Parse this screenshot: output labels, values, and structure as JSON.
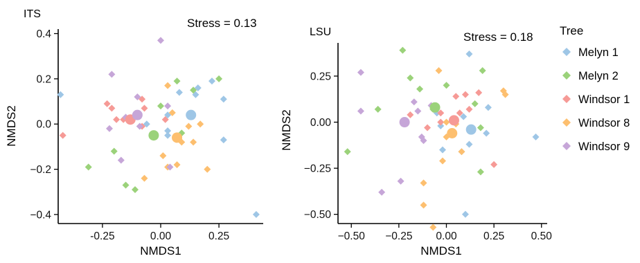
{
  "colors": {
    "Melyn 1": "#9ec6e6",
    "Melyn 2": "#9bd27a",
    "Windsor 1": "#f69a96",
    "Windsor 8": "#fdbf6f",
    "Windsor 9": "#c6a6d8"
  },
  "legend": {
    "title": "Tree",
    "items": [
      "Melyn 1",
      "Melyn 2",
      "Windsor 1",
      "Windsor 8",
      "Windsor 9"
    ],
    "position": "right"
  },
  "chart_data": [
    {
      "type": "scatter",
      "panel_label": "ITS",
      "stress": "Stress = 0.13",
      "xlabel": "NMDS1",
      "ylabel": "NMDS2",
      "xlim": [
        -0.44,
        0.44
      ],
      "ylim": [
        -0.44,
        0.42
      ],
      "xticks": [
        -0.25,
        0,
        0.25
      ],
      "xtick_labels": [
        "-0.25",
        "0.00",
        "0.25"
      ],
      "yticks": [
        -0.4,
        -0.2,
        0,
        0.2,
        0.4
      ],
      "ytick_labels": [
        "−0.4",
        "−0.2",
        "0.0",
        "0.2",
        "0.4"
      ],
      "grid": false,
      "series": [
        {
          "name": "Melyn 1",
          "points": [
            [
              -0.43,
              0.13
            ],
            [
              0.03,
              0.04
            ],
            [
              0.03,
              -0.05
            ],
            [
              0.08,
              0.14
            ],
            [
              0.16,
              0.16
            ],
            [
              0.15,
              0.13
            ],
            [
              0.22,
              0.19
            ],
            [
              0.27,
              0.11
            ],
            [
              0.27,
              -0.07
            ],
            [
              0.41,
              -0.4
            ],
            [
              -0.06,
              0.0
            ],
            [
              0.03,
              -0.03
            ]
          ],
          "centroid": [
            0.13,
            0.04
          ]
        },
        {
          "name": "Melyn 2",
          "points": [
            [
              -0.31,
              -0.19
            ],
            [
              -0.2,
              -0.12
            ],
            [
              -0.15,
              -0.27
            ],
            [
              -0.11,
              -0.29
            ],
            [
              0.07,
              0.19
            ],
            [
              0.09,
              -0.04
            ],
            [
              0.14,
              0.15
            ],
            [
              0.25,
              0.2
            ],
            [
              0.0,
              0.08
            ],
            [
              0.13,
              0.04
            ]
          ],
          "centroid": [
            -0.03,
            -0.05
          ]
        },
        {
          "name": "Windsor 1",
          "points": [
            [
              -0.42,
              -0.05
            ],
            [
              -0.23,
              0.09
            ],
            [
              -0.19,
              0.02
            ],
            [
              -0.21,
              0.07
            ],
            [
              -0.08,
              0.11
            ],
            [
              -0.07,
              0.07
            ],
            [
              -0.08,
              -0.01
            ],
            [
              0.02,
              0.02
            ],
            [
              -0.16,
              0.02
            ]
          ],
          "centroid": [
            -0.13,
            0.02
          ]
        },
        {
          "name": "Windsor 8",
          "points": [
            [
              0.03,
              0.17
            ],
            [
              0.01,
              -0.14
            ],
            [
              0.03,
              -0.19
            ],
            [
              0.07,
              -0.18
            ],
            [
              0.09,
              -0.08
            ],
            [
              0.14,
              -0.08
            ],
            [
              0.17,
              0.0
            ],
            [
              0.2,
              -0.2
            ],
            [
              -0.07,
              -0.24
            ],
            [
              0.05,
              0.05
            ],
            [
              0.12,
              -0.01
            ]
          ],
          "centroid": [
            0.07,
            -0.06
          ]
        },
        {
          "name": "Windsor 9",
          "points": [
            [
              -0.21,
              0.22
            ],
            [
              -0.22,
              -0.02
            ],
            [
              -0.17,
              -0.16
            ],
            [
              -0.1,
              0.12
            ],
            [
              0.0,
              0.37
            ],
            [
              0.03,
              0.08
            ],
            [
              0.04,
              -0.19
            ],
            [
              -0.09,
              -0.01
            ],
            [
              -0.15,
              0.03
            ]
          ],
          "centroid": [
            -0.1,
            0.04
          ]
        }
      ]
    },
    {
      "type": "scatter",
      "panel_label": "LSU",
      "stress": "Stress = 0.18",
      "xlabel": "NMDS1",
      "ylabel": "NMDS2",
      "xlim": [
        -0.57,
        0.53
      ],
      "ylim": [
        -0.55,
        0.43
      ],
      "xticks": [
        -0.5,
        -0.25,
        0,
        0.25,
        0.5
      ],
      "xtick_labels": [
        "−0.50",
        "−0.25",
        "0.00",
        "0.25",
        "0.50"
      ],
      "yticks": [
        -0.5,
        -0.25,
        0,
        0.25
      ],
      "ytick_labels": [
        "−0.50",
        "−0.25",
        "0.00",
        "0.25"
      ],
      "grid": false,
      "series": [
        {
          "name": "Melyn 1",
          "points": [
            [
              0.12,
              0.37
            ],
            [
              -0.03,
              -0.02
            ],
            [
              -0.02,
              -0.15
            ],
            [
              0.08,
              -0.16
            ],
            [
              0.12,
              -0.12
            ],
            [
              0.1,
              -0.5
            ],
            [
              0.22,
              0.08
            ],
            [
              0.21,
              -0.06
            ],
            [
              0.47,
              -0.08
            ],
            [
              0.09,
              0.03
            ],
            [
              -0.05,
              0.05
            ]
          ],
          "centroid": [
            0.13,
            -0.04
          ]
        },
        {
          "name": "Melyn 2",
          "points": [
            [
              -0.52,
              -0.16
            ],
            [
              -0.36,
              0.07
            ],
            [
              -0.23,
              0.39
            ],
            [
              -0.19,
              0.24
            ],
            [
              -0.14,
              0.18
            ],
            [
              -0.07,
              0.07
            ],
            [
              0.0,
              0.2
            ],
            [
              0.18,
              -0.03
            ],
            [
              0.18,
              -0.27
            ],
            [
              0.19,
              0.28
            ],
            [
              0.15,
              0.1
            ]
          ],
          "centroid": [
            -0.06,
            0.08
          ]
        },
        {
          "name": "Windsor 1",
          "points": [
            [
              -0.19,
              0.04
            ],
            [
              -0.1,
              -0.03
            ],
            [
              -0.03,
              0.0
            ],
            [
              -0.03,
              0.05
            ],
            [
              0.05,
              0.14
            ],
            [
              0.1,
              0.15
            ],
            [
              0.17,
              0.16
            ],
            [
              0.07,
              0.05
            ],
            [
              0.25,
              -0.23
            ],
            [
              0.12,
              0.07
            ]
          ],
          "centroid": [
            0.04,
            0.01
          ]
        },
        {
          "name": "Windsor 8",
          "points": [
            [
              -0.04,
              0.28
            ],
            [
              -0.12,
              -0.33
            ],
            [
              -0.12,
              -0.45
            ],
            [
              -0.02,
              -0.21
            ],
            [
              0.0,
              0.0
            ],
            [
              0.05,
              -0.01
            ],
            [
              0.08,
              -0.16
            ],
            [
              0.3,
              0.17
            ],
            [
              0.31,
              0.15
            ],
            [
              -0.07,
              -0.57
            ],
            [
              0.0,
              -0.08
            ]
          ],
          "centroid": [
            0.03,
            -0.06
          ]
        },
        {
          "name": "Windsor 9",
          "points": [
            [
              -0.45,
              0.27
            ],
            [
              -0.45,
              0.06
            ],
            [
              -0.34,
              -0.38
            ],
            [
              -0.17,
              0.11
            ],
            [
              -0.15,
              0.06
            ],
            [
              -0.13,
              -0.08
            ],
            [
              -0.12,
              -0.1
            ],
            [
              -0.24,
              -0.32
            ],
            [
              -0.08,
              0.09
            ]
          ],
          "centroid": [
            -0.22,
            0.0
          ]
        }
      ]
    }
  ]
}
